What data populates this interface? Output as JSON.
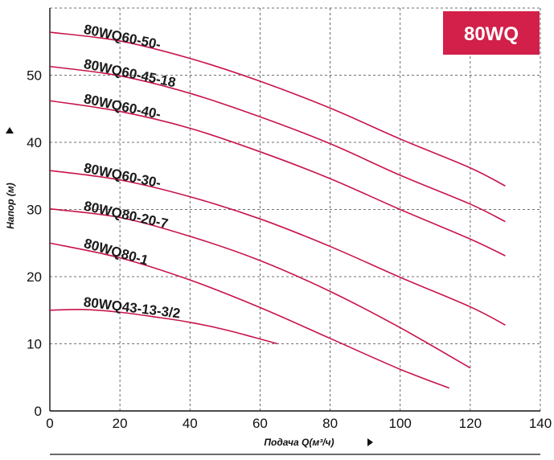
{
  "badge": {
    "text": "80WQ",
    "color": "#d2204a"
  },
  "colors": {
    "curve": "#c8144a",
    "grid": "#444444",
    "axis": "#111111"
  },
  "chart_data": {
    "type": "line",
    "xlabel": "Подача Q(м³/ч)",
    "ylabel": "Напор (м)",
    "xlim": [
      0,
      140
    ],
    "ylim": [
      0,
      60
    ],
    "x_ticks": [
      0,
      20,
      40,
      60,
      80,
      100,
      120,
      140
    ],
    "y_ticks": [
      0,
      10,
      20,
      30,
      40,
      50
    ],
    "grid": true,
    "grid_style": "dashed",
    "series": [
      {
        "name": "80WQ60-50-",
        "x": [
          0,
          20,
          40,
          60,
          80,
          100,
          120,
          130
        ],
        "y": [
          56.4,
          55.1,
          52.5,
          49.1,
          45.1,
          40.5,
          36.2,
          33.5
        ]
      },
      {
        "name": "80WQ60-45-18",
        "x": [
          0,
          20,
          40,
          60,
          80,
          100,
          120,
          130
        ],
        "y": [
          51.3,
          49.9,
          47.3,
          43.8,
          39.8,
          35.1,
          30.8,
          28.2
        ]
      },
      {
        "name": "80WQ60-40-",
        "x": [
          0,
          20,
          40,
          60,
          80,
          100,
          120,
          130
        ],
        "y": [
          46.2,
          44.6,
          42.1,
          38.6,
          34.6,
          30.0,
          25.6,
          23.1
        ]
      },
      {
        "name": "80WQ60-30-",
        "x": [
          0,
          20,
          40,
          60,
          80,
          100,
          120,
          130
        ],
        "y": [
          35.8,
          34.4,
          31.9,
          28.6,
          24.5,
          19.9,
          15.5,
          12.8
        ]
      },
      {
        "name": "80WQ80-20-7",
        "x": [
          0,
          20,
          40,
          60,
          80,
          100,
          120
        ],
        "y": [
          30.1,
          28.8,
          26.0,
          22.4,
          17.8,
          12.4,
          6.4
        ]
      },
      {
        "name": "80WQ80-1",
        "x": [
          0,
          20,
          40,
          60,
          80,
          100,
          114
        ],
        "y": [
          25.0,
          22.8,
          19.5,
          15.4,
          10.8,
          6.2,
          3.4
        ]
      },
      {
        "name": "80WQ43-13-3/2",
        "x": [
          0,
          10,
          20,
          30,
          40,
          50,
          58,
          65
        ],
        "y": [
          15.0,
          15.1,
          14.7,
          14.0,
          13.2,
          12.1,
          11.0,
          10.0
        ]
      }
    ]
  }
}
